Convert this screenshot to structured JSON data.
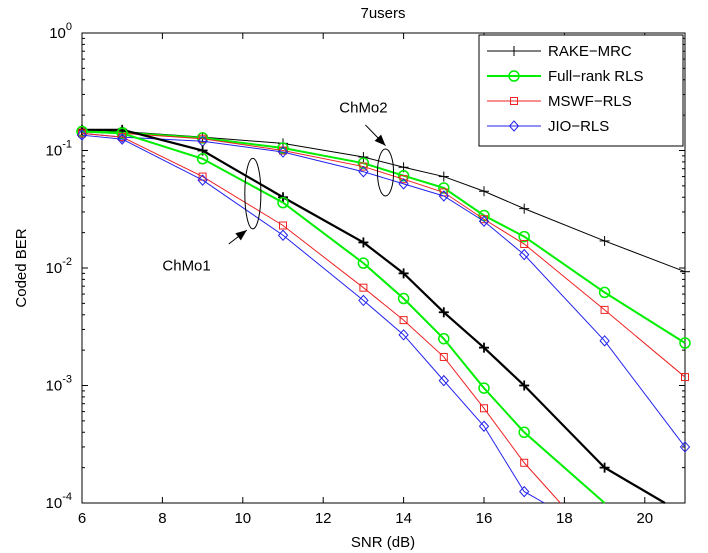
{
  "chart_data": {
    "type": "line",
    "title": "7users",
    "xlabel": "SNR (dB)",
    "ylabel": "Coded BER",
    "xlim": [
      6,
      21
    ],
    "ylim": [
      0.0001,
      1
    ],
    "yscale": "log",
    "grid": false,
    "legend_position": "top-right",
    "x_ticks": [
      6,
      8,
      10,
      12,
      14,
      16,
      18,
      20
    ],
    "y_ticks": [
      {
        "value": 0.0001,
        "base": "10",
        "exp": "-4"
      },
      {
        "value": 0.001,
        "base": "10",
        "exp": "-3"
      },
      {
        "value": 0.01,
        "base": "10",
        "exp": "-2"
      },
      {
        "value": 0.1,
        "base": "10",
        "exp": "-1"
      },
      {
        "value": 1,
        "base": "10",
        "exp": "0"
      }
    ],
    "series": [
      {
        "name": "RAKE−MRC",
        "color": "#000000",
        "marker": "plus",
        "legend": true,
        "x": [
          6,
          7,
          9,
          11,
          13,
          14,
          15,
          16,
          17,
          19,
          21
        ],
        "y": [
          0.15,
          0.145,
          0.13,
          0.115,
          0.088,
          0.072,
          0.06,
          0.045,
          0.032,
          0.017,
          0.0093
        ]
      },
      {
        "name": "Full−rank RLS",
        "color": "#00ee00",
        "marker": "circle",
        "legend": true,
        "x": [
          6,
          7,
          9,
          11,
          13,
          14,
          15,
          16,
          17,
          19,
          21
        ],
        "y": [
          0.145,
          0.142,
          0.128,
          0.105,
          0.078,
          0.061,
          0.048,
          0.028,
          0.0185,
          0.0062,
          0.0023
        ]
      },
      {
        "name": "MSWF−RLS",
        "color": "#ee2222",
        "marker": "square",
        "legend": true,
        "x": [
          6,
          7,
          9,
          11,
          13,
          14,
          15,
          16,
          17,
          19,
          21
        ],
        "y": [
          0.145,
          0.14,
          0.126,
          0.1,
          0.073,
          0.057,
          0.044,
          0.026,
          0.016,
          0.0044,
          0.00118
        ]
      },
      {
        "name": "JIO−RLS",
        "color": "#2222ee",
        "marker": "diamond",
        "legend": true,
        "x": [
          6,
          7,
          9,
          11,
          13,
          14,
          15,
          16,
          17,
          19,
          21
        ],
        "y": [
          0.14,
          0.13,
          0.12,
          0.097,
          0.066,
          0.052,
          0.041,
          0.025,
          0.013,
          0.0024,
          0.0003
        ]
      },
      {
        "name": "",
        "color": "#000000",
        "marker": "plus",
        "legend": false,
        "thick": true,
        "x": [
          6,
          7,
          9,
          11,
          13,
          14,
          15,
          16,
          17,
          19,
          20.5
        ],
        "y": [
          0.15,
          0.15,
          0.1,
          0.04,
          0.0165,
          0.009,
          0.0042,
          0.0021,
          0.001,
          0.0002,
          0.0001
        ]
      },
      {
        "name": "",
        "color": "#00ee00",
        "marker": "circle",
        "legend": false,
        "x": [
          6,
          7,
          9,
          11,
          13,
          14,
          15,
          16,
          17,
          19
        ],
        "y": [
          0.145,
          0.14,
          0.085,
          0.036,
          0.011,
          0.0055,
          0.0025,
          0.00095,
          0.0004,
          0.0001
        ]
      },
      {
        "name": "",
        "color": "#ee2222",
        "marker": "square",
        "legend": false,
        "x": [
          6,
          7,
          9,
          11,
          13,
          14,
          15,
          16,
          17,
          17.9
        ],
        "y": [
          0.14,
          0.13,
          0.06,
          0.023,
          0.0068,
          0.0036,
          0.00175,
          0.00064,
          0.00022,
          0.0001
        ]
      },
      {
        "name": "",
        "color": "#2222ee",
        "marker": "diamond",
        "legend": false,
        "x": [
          6,
          7,
          9,
          11,
          13,
          14,
          15,
          16,
          17,
          17.5
        ],
        "y": [
          0.135,
          0.125,
          0.056,
          0.019,
          0.0053,
          0.0027,
          0.0011,
          0.00045,
          0.000125,
          0.0001
        ]
      }
    ],
    "annotations": [
      {
        "text": "ChMo2",
        "text_x": 12.4,
        "text_y": 0.21,
        "arrow_from": [
          13.05,
          0.165
        ],
        "arrow_to": [
          13.55,
          0.11
        ],
        "ellipse_center": [
          13.55,
          0.065
        ],
        "ellipse_rx": 0.2,
        "ellipse_ry_log": 0.2
      },
      {
        "text": "ChMo1",
        "text_x": 8.0,
        "text_y": 0.0095,
        "arrow_from": [
          9.65,
          0.016
        ],
        "arrow_to": [
          10.1,
          0.021
        ],
        "ellipse_center": [
          10.25,
          0.043
        ],
        "ellipse_rx": 0.2,
        "ellipse_ry_log": 0.3
      }
    ]
  }
}
